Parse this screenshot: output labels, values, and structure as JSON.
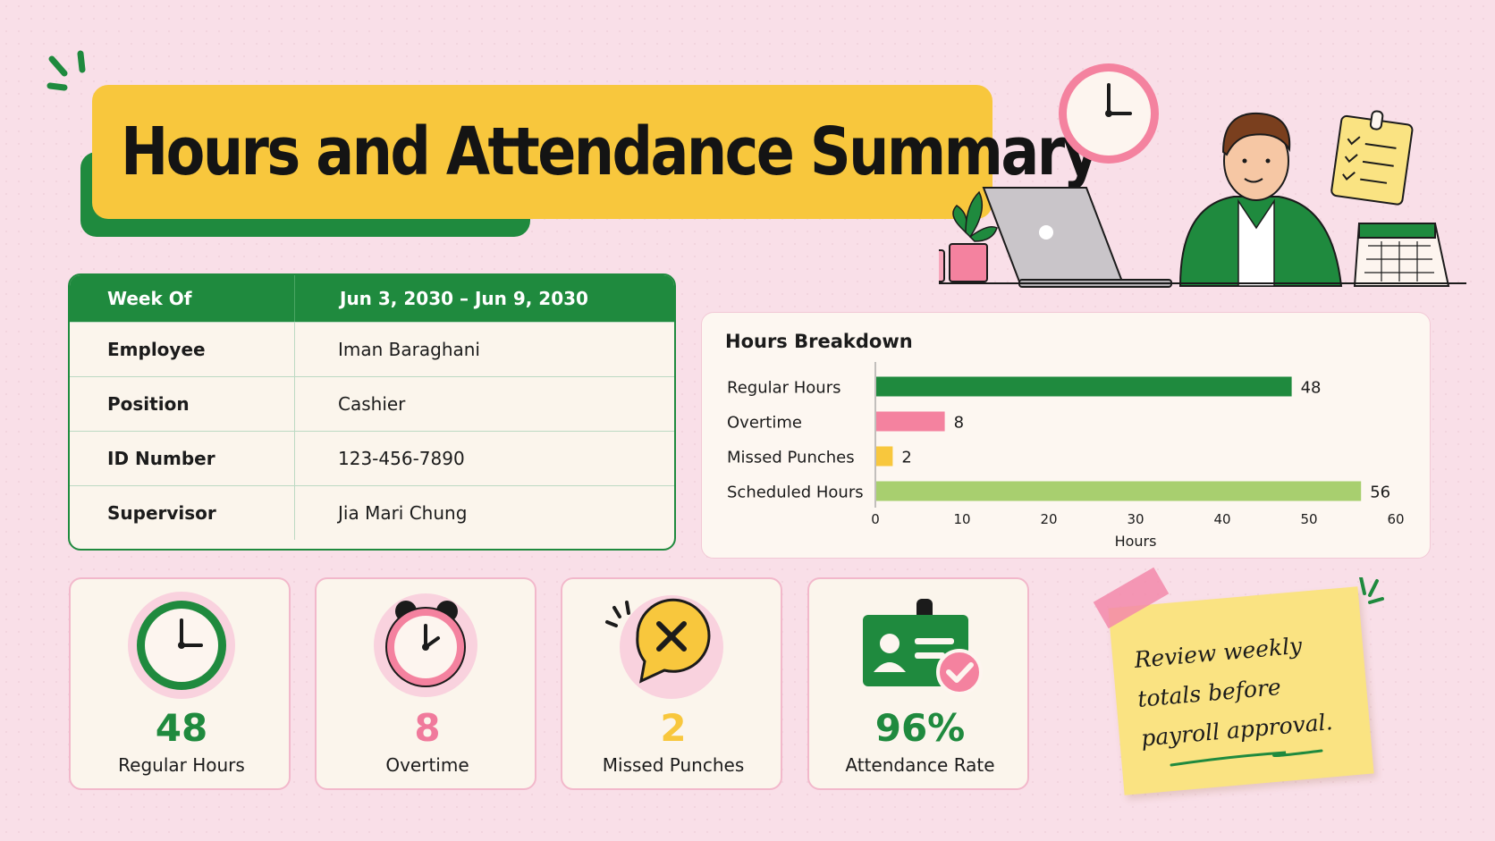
{
  "title": "Hours and Attendance Summary",
  "info_table": {
    "header": {
      "label": "Week Of",
      "value": "Jun 3, 2030 – Jun 9, 2030"
    },
    "rows": [
      {
        "label": "Employee",
        "value": "Iman Baraghani"
      },
      {
        "label": "Position",
        "value": "Cashier"
      },
      {
        "label": "ID Number",
        "value": "123-456-7890"
      },
      {
        "label": "Supervisor",
        "value": "Jia Mari Chung"
      }
    ]
  },
  "chart_data": {
    "type": "bar",
    "orientation": "horizontal",
    "title": "Hours Breakdown",
    "categories": [
      "Regular Hours",
      "Overtime",
      "Missed Punches",
      "Scheduled Hours"
    ],
    "values": [
      48,
      8,
      2,
      56
    ],
    "colors": [
      "#1f8a3e",
      "#f4829f",
      "#f8c73d",
      "#a8cf6f"
    ],
    "xlabel": "Hours",
    "ylabel": "",
    "xlim": [
      0,
      60
    ],
    "xticks": [
      0,
      10,
      20,
      30,
      40,
      50,
      60
    ],
    "grid": false,
    "legend": "none"
  },
  "stats": [
    {
      "value": "48",
      "label": "Regular Hours",
      "color": "#1f8a3e",
      "icon": "clock-icon"
    },
    {
      "value": "8",
      "label": "Overtime",
      "color": "#f07a9c",
      "icon": "alarm-clock-icon"
    },
    {
      "value": "2",
      "label": "Missed Punches",
      "color": "#f8c73d",
      "icon": "x-speech-bubble-icon"
    },
    {
      "value": "96%",
      "label": "Attendance Rate",
      "color": "#1f8a3e",
      "icon": "id-badge-check-icon"
    }
  ],
  "note": {
    "line1": "Review weekly",
    "line2": "totals before",
    "line3": "payroll approval."
  },
  "colors": {
    "background": "#f9dfe8",
    "brand_green": "#1f8a3e",
    "accent_yellow": "#f8c73d",
    "accent_pink": "#f4829f"
  }
}
